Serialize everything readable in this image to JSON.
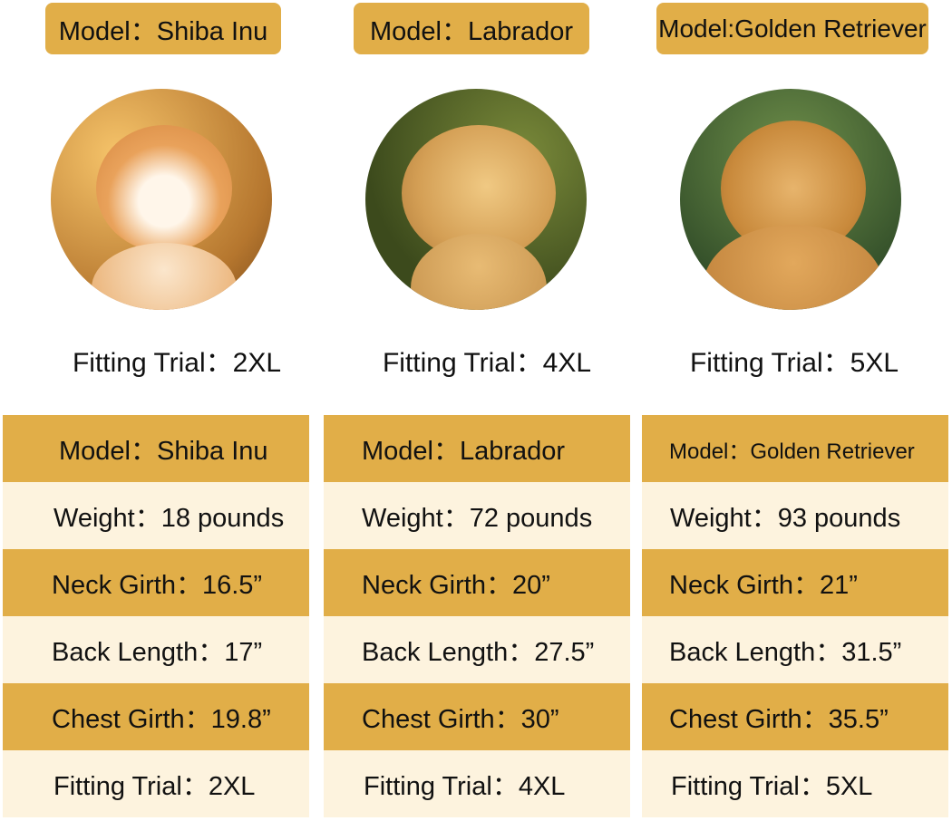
{
  "colors": {
    "accent": "#E1AE48",
    "light": "#FDF3DE"
  },
  "models": [
    {
      "badge": "Model：Shiba Inu",
      "photo": "shiba-inu-photo",
      "fitting": "Fitting Trial：2XL",
      "rows": [
        "Model：Shiba Inu",
        "Weight：18 pounds",
        "Neck Girth：16.5”",
        "Back Length：17”",
        "Chest Girth：19.8”",
        "Fitting Trial：2XL"
      ]
    },
    {
      "badge": "Model：Labrador",
      "photo": "labrador-photo",
      "fitting": "Fitting Trial：4XL",
      "rows": [
        "Model：Labrador",
        "Weight：72 pounds",
        "Neck Girth：20”",
        "Back Length：27.5”",
        "Chest Girth：30”",
        "Fitting Trial：4XL"
      ]
    },
    {
      "badge": "Model:Golden Retriever",
      "photo": "golden-retriever-photo",
      "fitting": "Fitting Trial：5XL",
      "rows": [
        "Model：Golden Retriever",
        "Weight：93 pounds",
        "Neck Girth：21”",
        "Back Length：31.5”",
        "Chest Girth：35.5”",
        "Fitting Trial：5XL"
      ]
    }
  ]
}
